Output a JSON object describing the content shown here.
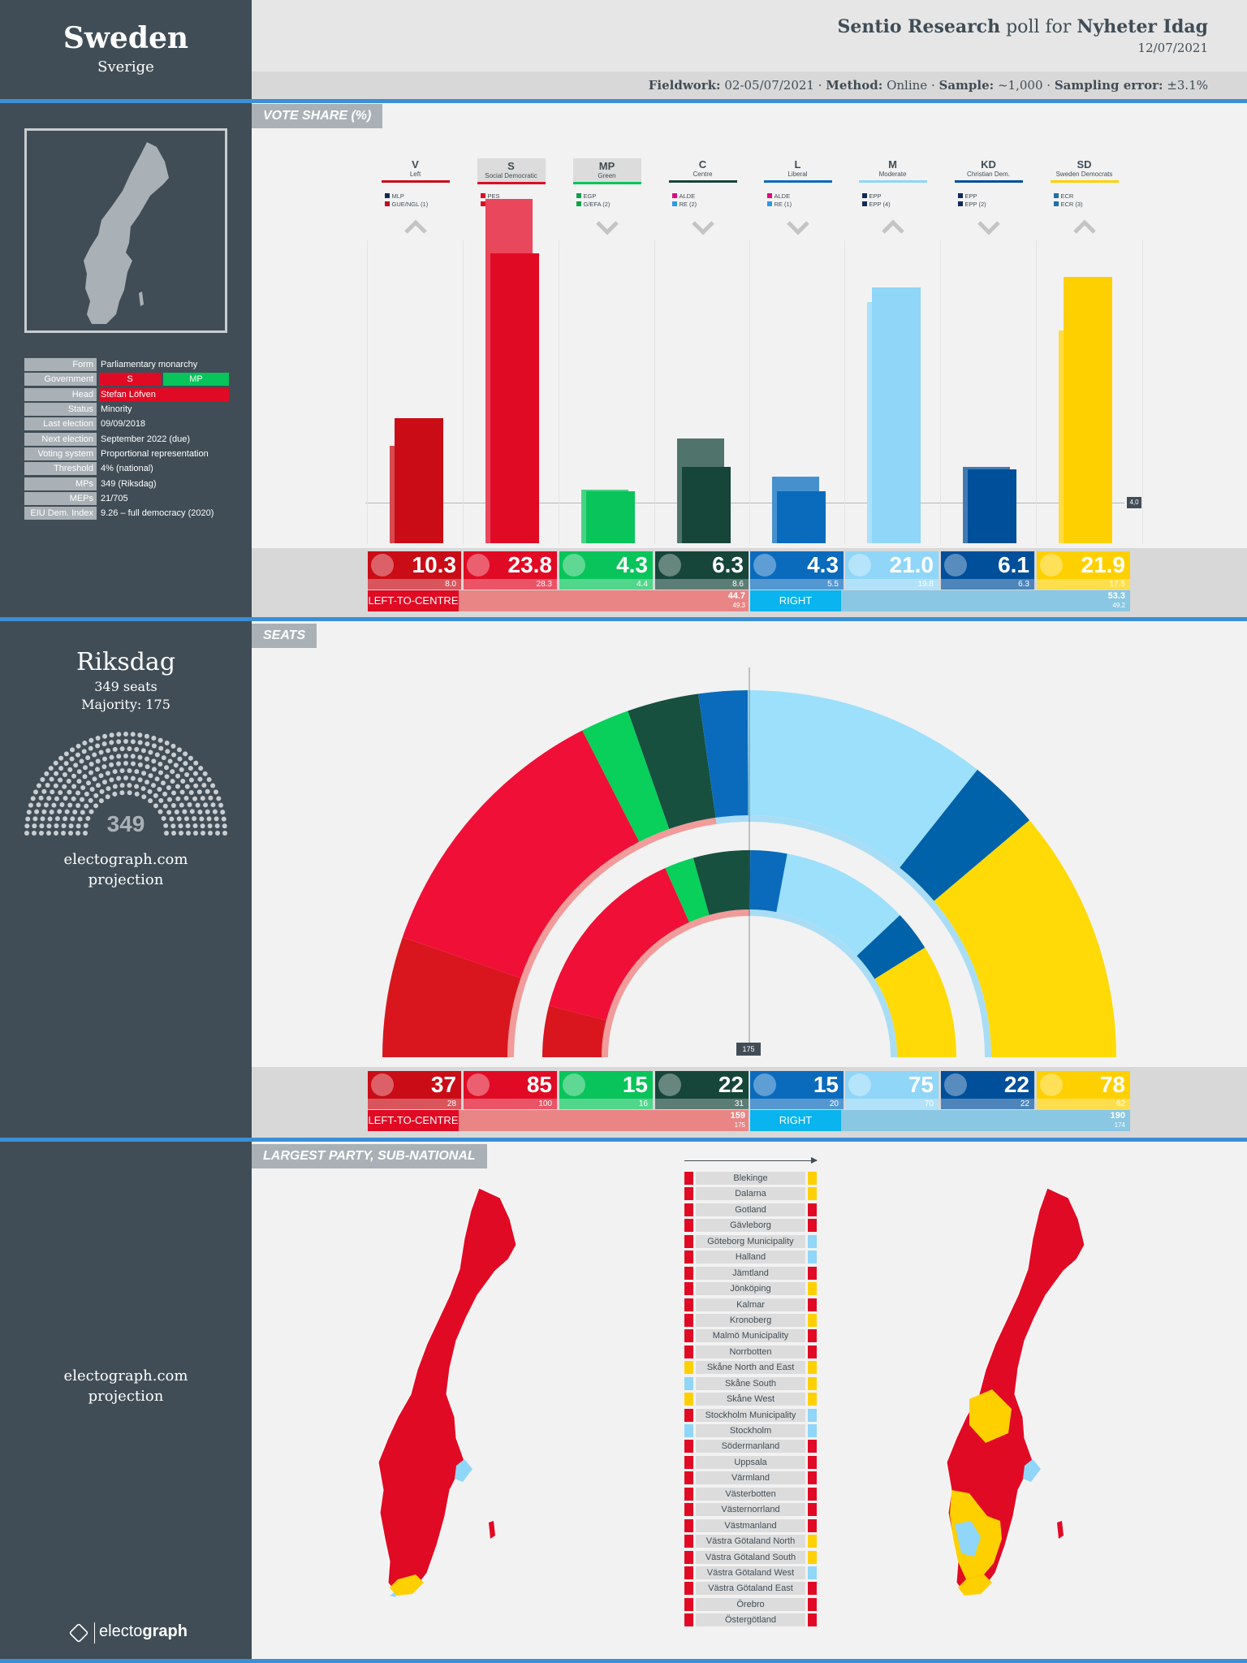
{
  "header": {
    "country": "Sweden",
    "country_native": "Sverige",
    "pollster": "Sentio Research",
    "poll_for": "poll for",
    "client": "Nyheter Idag",
    "date": "12/07/2021",
    "fieldwork_label": "Fieldwork:",
    "fieldwork_value": "02-05/07/2021",
    "method_label": "Method:",
    "method_value": "Online",
    "sample_label": "Sample:",
    "sample_value": "~1,000",
    "error_label": "Sampling error:",
    "error_value": "±3.1%"
  },
  "info": {
    "rows": [
      {
        "key": "Form",
        "val": "Parliamentary monarchy"
      },
      {
        "key": "Government",
        "val": ""
      },
      {
        "key": "Head",
        "val": "Stefan Löfven"
      },
      {
        "key": "Status",
        "val": "Minority"
      },
      {
        "key": "Last election",
        "val": "09/09/2018"
      },
      {
        "key": "Next election",
        "val": "September 2022 (due)"
      },
      {
        "key": "Voting system",
        "val": "Proportional representation"
      },
      {
        "key": "Threshold",
        "val": "4% (national)"
      },
      {
        "key": "MPs",
        "val": "349 (Riksdag)"
      },
      {
        "key": "MEPs",
        "val": "21/705"
      },
      {
        "key": "EIU Dem. Index",
        "val": "9.26 – full democracy (2020)"
      }
    ],
    "gov_s": "S",
    "gov_mp": "MP"
  },
  "sections": {
    "vote_share": "VOTE SHARE (%)",
    "seats": "SEATS",
    "largest_party": "LARGEST PARTY, SUB-NATIONAL"
  },
  "chart_data": [
    {
      "type": "bar",
      "title": "VOTE SHARE (%)",
      "categories": [
        "V",
        "S",
        "MP",
        "C",
        "L",
        "M",
        "KD",
        "SD"
      ],
      "names": [
        "Left",
        "Social Democratic",
        "Green",
        "Centre",
        "Liberal",
        "Moderate",
        "Christian Dem.",
        "Sweden Democrats"
      ],
      "colors": [
        "#c90c16",
        "#e10a24",
        "#08c45a",
        "#16453a",
        "#0a6bbd",
        "#8fd6f8",
        "#004f9b",
        "#ffd000"
      ],
      "groups": [
        [
          [
            "#102a58",
            "MLP"
          ],
          [
            "#c10b25",
            "GUE/NGL (1)"
          ]
        ],
        [
          [
            "#e10a24",
            "PES"
          ],
          [
            "#e10a24",
            "S&D (5)"
          ]
        ],
        [
          [
            "#08a34a",
            "EGP"
          ],
          [
            "#08a34a",
            "G/EFA (2)"
          ]
        ],
        [
          [
            "#e10a7d",
            "ALDE"
          ],
          [
            "#2b9be3",
            "RE (2)"
          ]
        ],
        [
          [
            "#e10a7d",
            "ALDE"
          ],
          [
            "#2b9be3",
            "RE (1)"
          ]
        ],
        [
          [
            "#102a58",
            "EPP"
          ],
          [
            "#102a58",
            "EPP (4)"
          ]
        ],
        [
          [
            "#102a58",
            "EPP"
          ],
          [
            "#102a58",
            "EPP (2)"
          ]
        ],
        [
          [
            "#1f6fa9",
            "ECR"
          ],
          [
            "#1f6fa9",
            "ECR (3)"
          ]
        ]
      ],
      "series": [
        {
          "name": "poll",
          "values": [
            10.3,
            23.8,
            4.3,
            6.3,
            4.3,
            21.0,
            6.1,
            21.9
          ]
        },
        {
          "name": "previous",
          "values": [
            8.0,
            28.3,
            4.4,
            8.6,
            5.5,
            19.8,
            6.3,
            17.5
          ]
        }
      ],
      "labels": [
        "10.3",
        "23.8",
        "4.3",
        "6.3",
        "4.3",
        "21.0",
        "6.1",
        "21.9"
      ],
      "prev_labels": [
        "8.0",
        "28.3",
        "4.4",
        "8.6",
        "5.5",
        "19.8",
        "6.3",
        "17.5"
      ],
      "trend": [
        "up",
        "down",
        "down",
        "down",
        "down",
        "up",
        "down",
        "up"
      ],
      "threshold": 4.0,
      "threshold_label": "4,0",
      "blocs": [
        {
          "name": "LEFT-TO-CENTRE",
          "value": "44.7",
          "prev": "49.3"
        },
        {
          "name": "RIGHT",
          "value": "53.3",
          "prev": "49.2"
        }
      ]
    },
    {
      "type": "bar",
      "title": "SEATS",
      "categories": [
        "V",
        "S",
        "MP",
        "C",
        "L",
        "M",
        "KD",
        "SD"
      ],
      "series": [
        {
          "name": "projection",
          "values": [
            37,
            85,
            15,
            22,
            15,
            75,
            22,
            78
          ]
        },
        {
          "name": "previous",
          "values": [
            28,
            100,
            16,
            31,
            20,
            70,
            22,
            62
          ]
        }
      ],
      "labels": [
        "37",
        "85",
        "15",
        "22",
        "15",
        "75",
        "22",
        "78"
      ],
      "prev_labels": [
        "28",
        "100",
        "16",
        "31",
        "20",
        "70",
        "22",
        "62"
      ],
      "majority": 175,
      "majority_label": "175",
      "blocs": [
        {
          "name": "LEFT-TO-CENTRE",
          "value": "159",
          "prev": "175"
        },
        {
          "name": "RIGHT",
          "value": "190",
          "prev": "174"
        }
      ]
    }
  ],
  "riksdag": {
    "title": "Riksdag",
    "seats": "349 seats",
    "majority": "Majority: 175",
    "total": "349",
    "source": "electograph.com",
    "source2": "projection"
  },
  "regions": [
    {
      "name": "Blekinge",
      "prev": "#e10a24",
      "now": "#ffd000"
    },
    {
      "name": "Dalarna",
      "prev": "#e10a24",
      "now": "#ffd000"
    },
    {
      "name": "Gotland",
      "prev": "#e10a24",
      "now": "#e10a24"
    },
    {
      "name": "Gävleborg",
      "prev": "#e10a24",
      "now": "#e10a24"
    },
    {
      "name": "Göteborg Municipality",
      "prev": "#e10a24",
      "now": "#8fd6f8"
    },
    {
      "name": "Halland",
      "prev": "#e10a24",
      "now": "#8fd6f8"
    },
    {
      "name": "Jämtland",
      "prev": "#e10a24",
      "now": "#e10a24"
    },
    {
      "name": "Jönköping",
      "prev": "#e10a24",
      "now": "#ffd000"
    },
    {
      "name": "Kalmar",
      "prev": "#e10a24",
      "now": "#e10a24"
    },
    {
      "name": "Kronoberg",
      "prev": "#e10a24",
      "now": "#ffd000"
    },
    {
      "name": "Malmö Municipality",
      "prev": "#e10a24",
      "now": "#e10a24"
    },
    {
      "name": "Norrbotten",
      "prev": "#e10a24",
      "now": "#e10a24"
    },
    {
      "name": "Skåne North and East",
      "prev": "#ffd000",
      "now": "#ffd000"
    },
    {
      "name": "Skåne South",
      "prev": "#8fd6f8",
      "now": "#ffd000"
    },
    {
      "name": "Skåne West",
      "prev": "#ffd000",
      "now": "#ffd000"
    },
    {
      "name": "Stockholm Municipality",
      "prev": "#e10a24",
      "now": "#8fd6f8"
    },
    {
      "name": "Stockholm",
      "prev": "#8fd6f8",
      "now": "#8fd6f8"
    },
    {
      "name": "Södermanland",
      "prev": "#e10a24",
      "now": "#e10a24"
    },
    {
      "name": "Uppsala",
      "prev": "#e10a24",
      "now": "#e10a24"
    },
    {
      "name": "Värmland",
      "prev": "#e10a24",
      "now": "#e10a24"
    },
    {
      "name": "Västerbotten",
      "prev": "#e10a24",
      "now": "#e10a24"
    },
    {
      "name": "Västernorrland",
      "prev": "#e10a24",
      "now": "#e10a24"
    },
    {
      "name": "Västmanland",
      "prev": "#e10a24",
      "now": "#e10a24"
    },
    {
      "name": "Västra Götaland North",
      "prev": "#e10a24",
      "now": "#ffd000"
    },
    {
      "name": "Västra Götaland South",
      "prev": "#e10a24",
      "now": "#ffd000"
    },
    {
      "name": "Västra Götaland West",
      "prev": "#e10a24",
      "now": "#8fd6f8"
    },
    {
      "name": "Västra Götaland East",
      "prev": "#e10a24",
      "now": "#e10a24"
    },
    {
      "name": "Örebro",
      "prev": "#e10a24",
      "now": "#e10a24"
    },
    {
      "name": "Östergötland",
      "prev": "#e10a24",
      "now": "#e10a24"
    }
  ],
  "footer": {
    "source": "electograph.com",
    "source2": "projection",
    "logo_a": "electo",
    "logo_b": "graph"
  }
}
